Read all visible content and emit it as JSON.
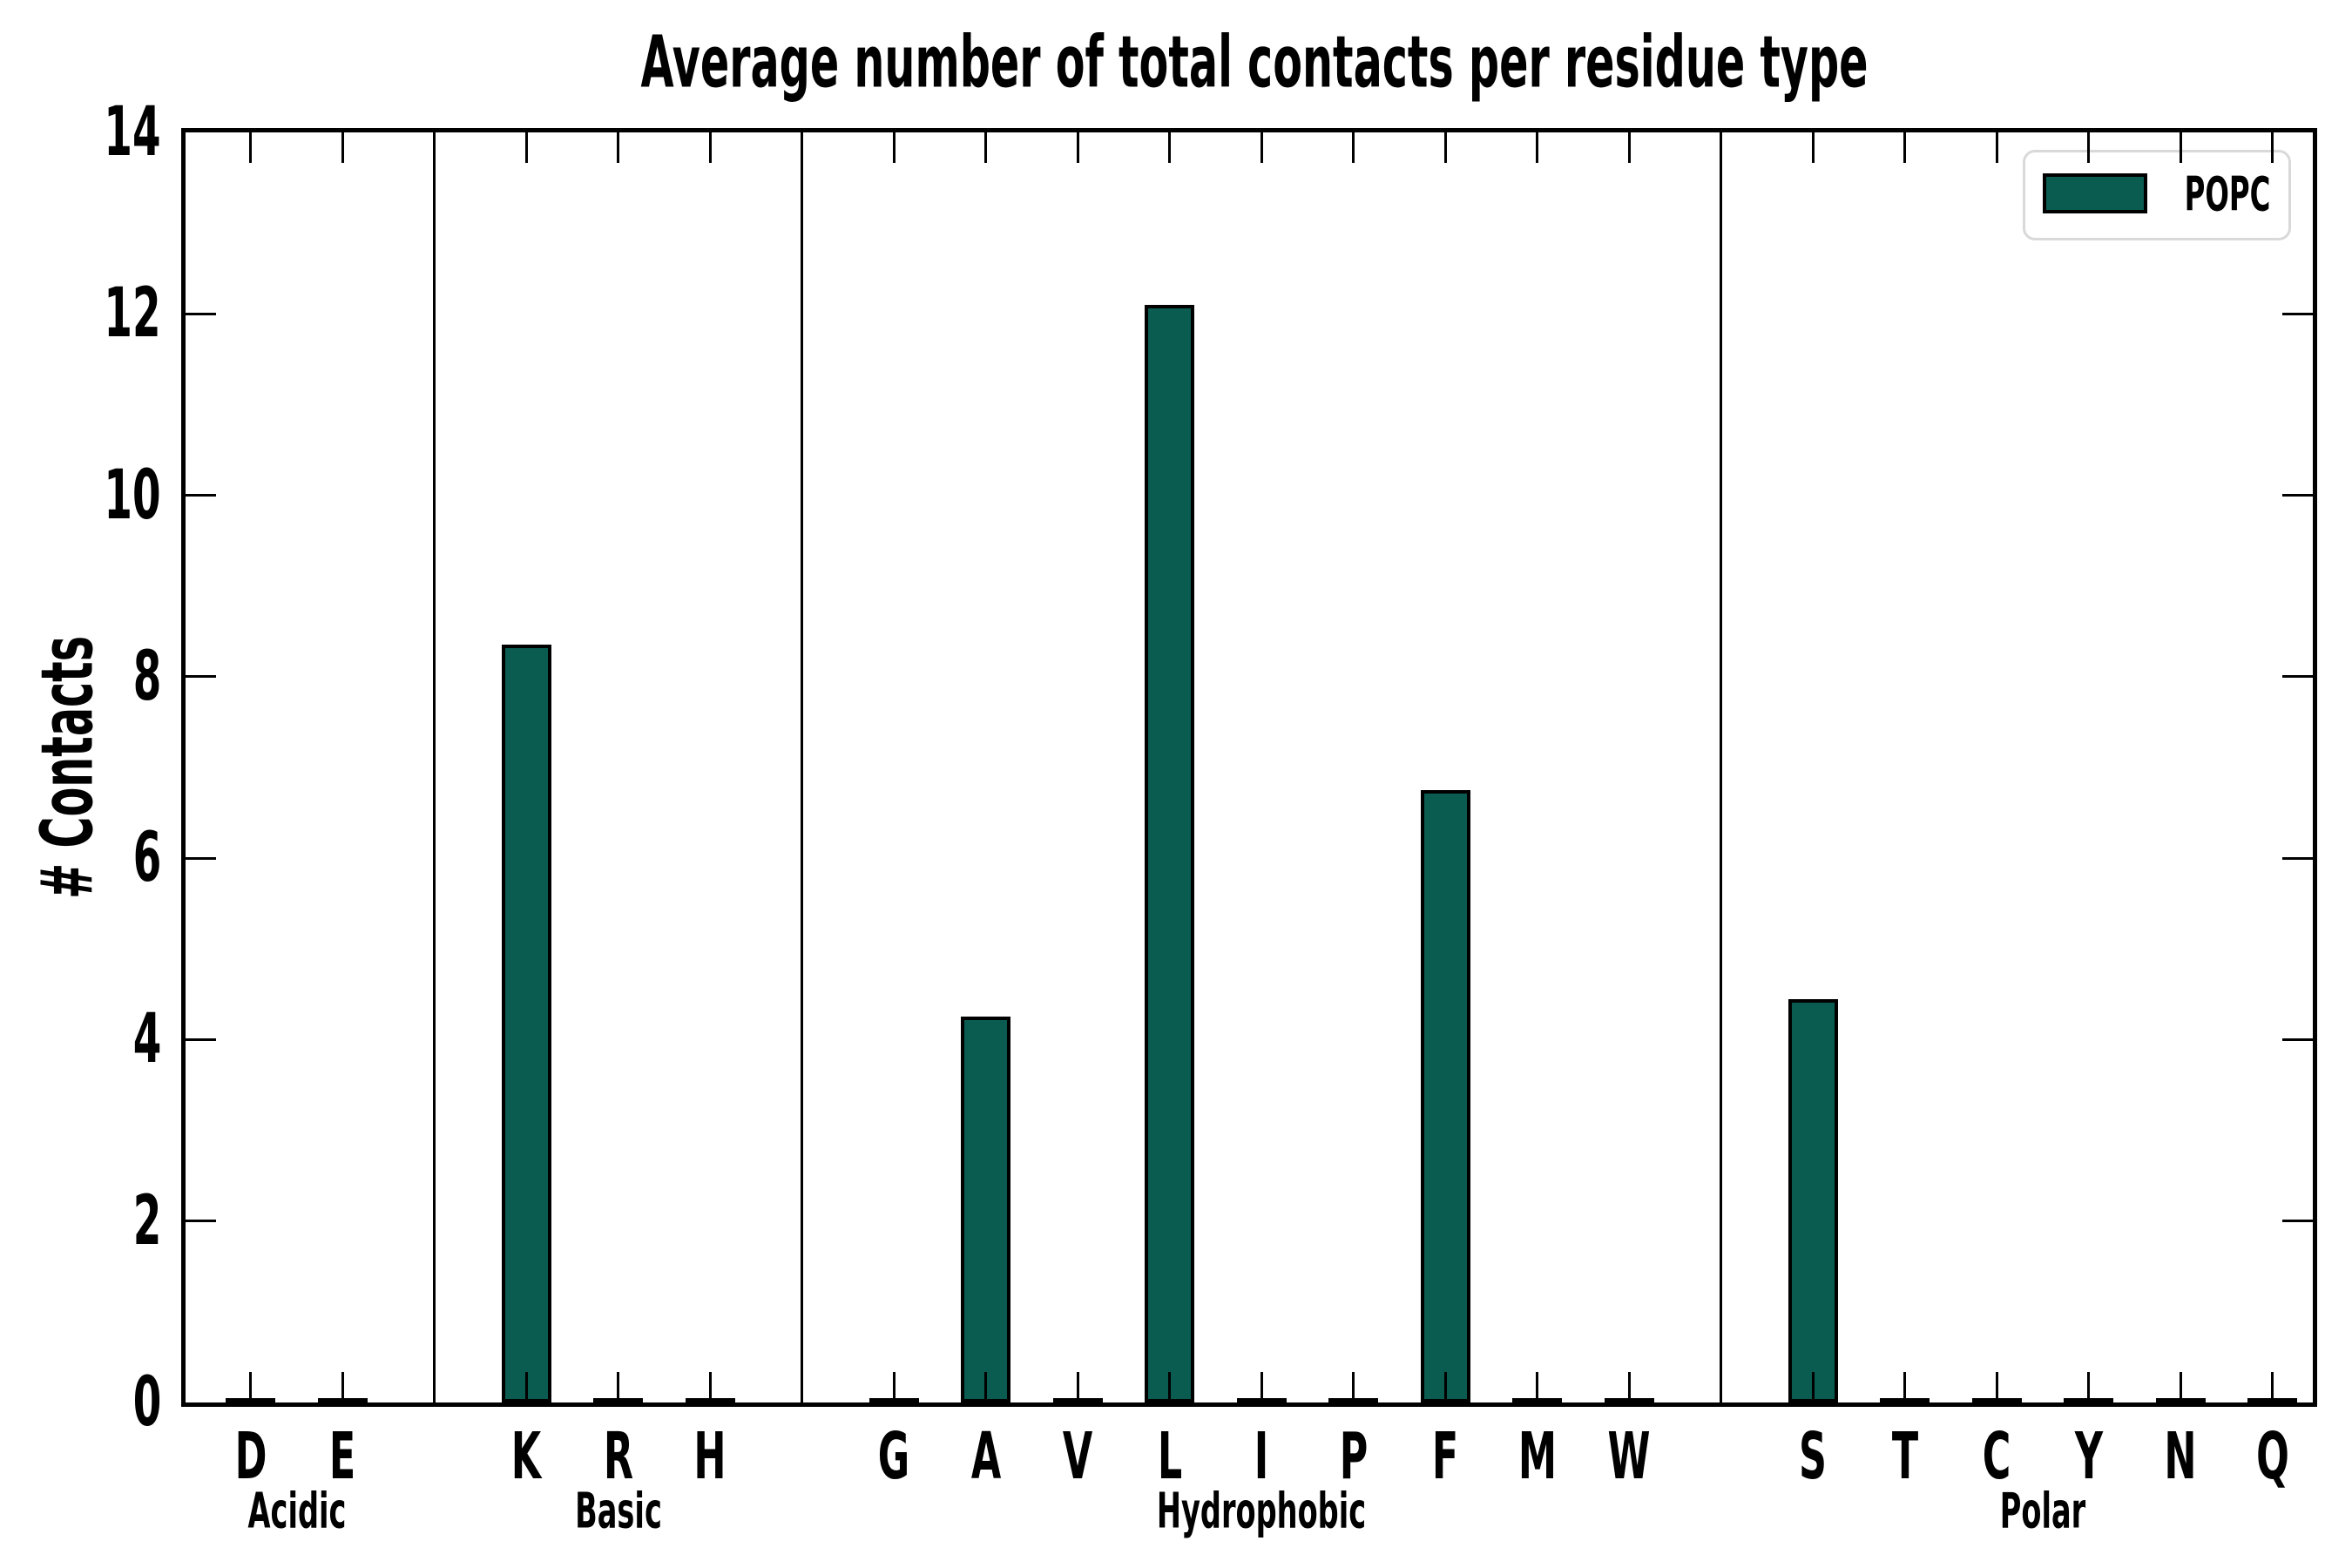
{
  "figure": {
    "background": "#ffffff"
  },
  "chart_data": {
    "type": "bar",
    "title": "Average number of total contacts per residue type",
    "xlabel": "",
    "ylabel": "# Contacts",
    "ylim": [
      0,
      14
    ],
    "yticks": [
      0,
      2,
      4,
      6,
      8,
      10,
      12,
      14
    ],
    "grid": false,
    "bar_color": "#0a5b50",
    "bar_edge_color": "#000000",
    "group_dividers": true,
    "legend": {
      "label": "POPC",
      "position": "upper right",
      "swatch_color": "#0a5b50",
      "border_color": "#d9d9d9"
    },
    "groups": [
      {
        "label": "Acidic",
        "categories": [
          "D",
          "E"
        ],
        "values": [
          0,
          0
        ]
      },
      {
        "label": "Basic",
        "categories": [
          "K",
          "R",
          "H"
        ],
        "values": [
          8.35,
          0,
          0
        ]
      },
      {
        "label": "Hydrophobic",
        "categories": [
          "G",
          "A",
          "V",
          "L",
          "I",
          "P",
          "F",
          "M",
          "W"
        ],
        "values": [
          0,
          4.25,
          0,
          12.1,
          0,
          0,
          6.75,
          0,
          0
        ]
      },
      {
        "label": "Polar",
        "categories": [
          "S",
          "T",
          "C",
          "Y",
          "N",
          "Q"
        ],
        "values": [
          4.45,
          0,
          0,
          0,
          0,
          0
        ]
      }
    ],
    "categories": [
      "D",
      "E",
      "K",
      "R",
      "H",
      "G",
      "A",
      "V",
      "L",
      "I",
      "P",
      "F",
      "M",
      "W",
      "S",
      "T",
      "C",
      "Y",
      "N",
      "Q"
    ],
    "values": [
      0,
      0,
      8.35,
      0,
      0,
      0,
      4.25,
      0,
      12.1,
      0,
      0,
      6.75,
      0,
      0,
      4.45,
      0,
      0,
      0,
      0,
      0
    ]
  }
}
